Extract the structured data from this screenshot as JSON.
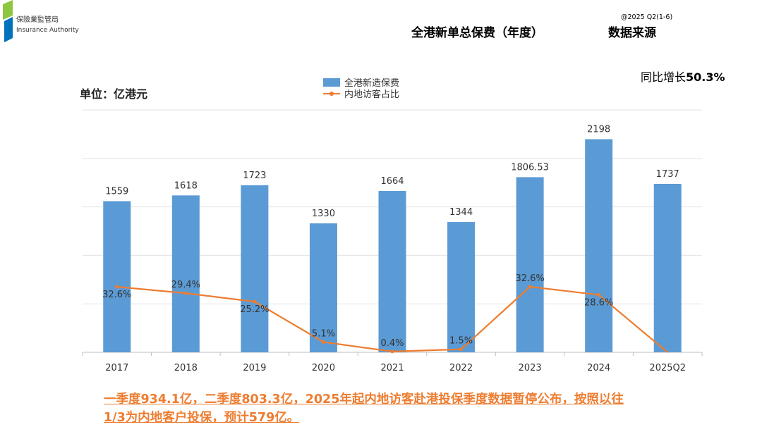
{
  "header": {
    "title": "全港新单总保费（年度）",
    "source_label": "数据来源",
    "period": "@2025 Q2(1-6)",
    "logo_cn": "保險業監管局",
    "logo_en": "Insurance Authority"
  },
  "yoy": {
    "label": "同比增长",
    "value": "50.3%"
  },
  "unit_label": "单位：亿港元",
  "note": {
    "line1": "一季度934.1亿，二季度803.3亿，2025年起内地访客赴港投保季度数据暂停公布，按照以往",
    "line2": "1/3为内地客户投保，预计579亿。"
  },
  "colors": {
    "bar": "#5B9BD5",
    "line": "#ED7D31",
    "note": "#ED7D31",
    "grid": "#e3e3e3",
    "logo_green": "#8DC63F",
    "logo_blue": "#0072BC"
  },
  "chart_data": {
    "type": "bar",
    "categories": [
      "2017",
      "2018",
      "2019",
      "2020",
      "2021",
      "2022",
      "2023",
      "2024",
      "2025Q2"
    ],
    "series": [
      {
        "name": "全港新造保费",
        "type": "bar",
        "values": [
          1559,
          1618,
          1723,
          1330,
          1664,
          1344,
          1806.53,
          2198,
          1737
        ],
        "labels": [
          "1559",
          "1618",
          "1723",
          "1330",
          "1664",
          "1344",
          "1806.53",
          "2198",
          "1737"
        ]
      },
      {
        "name": "内地访客占比",
        "type": "line",
        "values": [
          32.6,
          29.4,
          25.2,
          5.1,
          0.4,
          1.5,
          32.6,
          28.6,
          0
        ],
        "labels": [
          "32.6%",
          "29.4%",
          "25.2%",
          "5.1%",
          "0.4%",
          "1.5%",
          "32.6%",
          "28.6%",
          ""
        ]
      }
    ],
    "ylim": [
      0,
      2500
    ],
    "grid": true,
    "legend_position": "top-center"
  }
}
